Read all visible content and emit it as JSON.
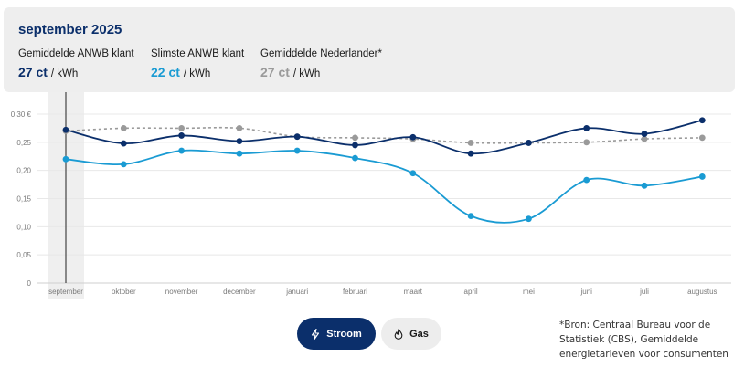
{
  "header": {
    "title": "september 2025",
    "stats": [
      {
        "label": "Gemiddelde ANWB klant",
        "value": "27 ct",
        "unit": "/ kWh",
        "color": "#0b2f6b"
      },
      {
        "label": "Slimste ANWB klant",
        "value": "22 ct",
        "unit": "/ kWh",
        "color": "#1a9bd3"
      },
      {
        "label": "Gemiddelde Nederlander*",
        "value": "27 ct",
        "unit": "/ kWh",
        "color": "#9a9a9a"
      }
    ]
  },
  "chart_data": {
    "type": "line",
    "title": "",
    "xlabel": "",
    "ylabel": "",
    "categories": [
      "september",
      "oktober",
      "november",
      "december",
      "januari",
      "februari",
      "maart",
      "april",
      "mei",
      "juni",
      "juli",
      "augustus"
    ],
    "y_ticks": [
      "0",
      "0,05",
      "0,10",
      "0,15",
      "0,20",
      "0,25",
      "0,30 €"
    ],
    "ylim": [
      0,
      0.3
    ],
    "grid": true,
    "legend": "none",
    "selected_category": "september",
    "series": [
      {
        "color": "#0b2f6b",
        "style": "solid",
        "values": [
          0.272,
          0.248,
          0.262,
          0.252,
          0.26,
          0.245,
          0.259,
          0.23,
          0.249,
          0.275,
          0.265,
          0.289
        ]
      },
      {
        "color": "#1a9bd3",
        "style": "solid",
        "values": [
          0.22,
          0.211,
          0.235,
          0.23,
          0.235,
          0.222,
          0.195,
          0.119,
          0.114,
          0.183,
          0.173,
          0.189
        ]
      },
      {
        "color": "#9a9a9a",
        "style": "dashed",
        "values": [
          0.27,
          0.275,
          0.275,
          0.275,
          0.26,
          0.258,
          0.256,
          0.249,
          0.249,
          0.25,
          0.256,
          0.258
        ]
      }
    ]
  },
  "toggle": {
    "stroom_label": "Stroom",
    "gas_label": "Gas"
  },
  "source_note": "*Bron: Centraal Bureau voor de Statistiek (CBS), Gemiddelde energietarieven voor consumenten"
}
